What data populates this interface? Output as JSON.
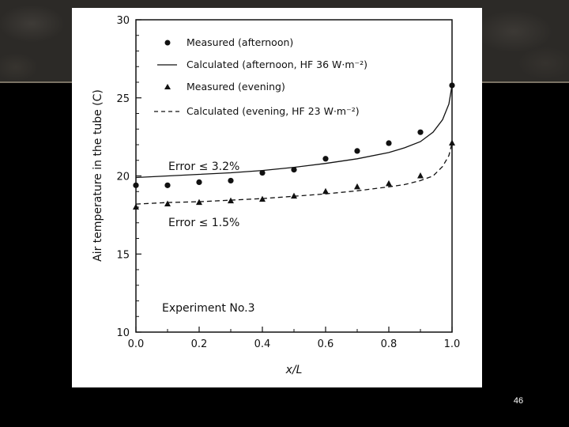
{
  "slide": {
    "page_number": "46"
  },
  "colors": {
    "background": "#000000",
    "header_texture": "#2c2a27",
    "header_rule": "#7a7264",
    "plot_ink": "#111111"
  },
  "chart_data": {
    "type": "line",
    "title": "",
    "xlabel": "x/L",
    "ylabel": "Air temperature in the tube (C)",
    "xlim": [
      0.0,
      1.0
    ],
    "ylim": [
      10,
      30
    ],
    "x_ticks": [
      "0.0",
      "0.2",
      "0.4",
      "0.6",
      "0.8",
      "1.0"
    ],
    "y_ticks": [
      "10",
      "15",
      "20",
      "25",
      "30"
    ],
    "grid": false,
    "legend_position": "top",
    "legend": [
      {
        "label": "Measured (afternoon)",
        "marker": "circle"
      },
      {
        "label": "Calculated (afternoon, HF 36 W·m⁻²)",
        "line": "solid"
      },
      {
        "label": "Measured (evening)",
        "marker": "triangle"
      },
      {
        "label": "Calculated (evening, HF 23 W·m⁻²)",
        "line": "dashed"
      }
    ],
    "annotations": [
      {
        "text": "Error ≤ 3.2%",
        "x": 0.1,
        "y": 20.7
      },
      {
        "text": "Error ≤ 1.5%",
        "x": 0.1,
        "y": 17.0
      },
      {
        "text": "Experiment No.3",
        "x": 0.08,
        "y": 11.5
      }
    ],
    "series": [
      {
        "name": "Measured (afternoon)",
        "kind": "scatter",
        "marker": "circle",
        "x": [
          0.0,
          0.1,
          0.2,
          0.3,
          0.4,
          0.5,
          0.6,
          0.7,
          0.8,
          0.9,
          1.0
        ],
        "y": [
          19.4,
          19.4,
          19.6,
          19.7,
          20.2,
          20.4,
          21.1,
          21.6,
          22.1,
          22.8,
          25.8
        ]
      },
      {
        "name": "Calculated (afternoon, HF 36 W·m⁻²)",
        "kind": "line",
        "style": "solid",
        "x": [
          0.0,
          0.1,
          0.2,
          0.3,
          0.4,
          0.5,
          0.6,
          0.7,
          0.8,
          0.85,
          0.9,
          0.94,
          0.97,
          0.99,
          1.0
        ],
        "y": [
          19.9,
          20.0,
          20.1,
          20.2,
          20.35,
          20.55,
          20.8,
          21.1,
          21.5,
          21.8,
          22.2,
          22.8,
          23.6,
          24.6,
          25.8
        ]
      },
      {
        "name": "Measured (evening)",
        "kind": "scatter",
        "marker": "triangle",
        "x": [
          0.0,
          0.1,
          0.2,
          0.3,
          0.4,
          0.5,
          0.6,
          0.7,
          0.8,
          0.9,
          1.0
        ],
        "y": [
          18.0,
          18.2,
          18.3,
          18.4,
          18.5,
          18.7,
          19.0,
          19.3,
          19.5,
          20.0,
          22.1
        ]
      },
      {
        "name": "Calculated (evening, HF 23 W·m⁻²)",
        "kind": "line",
        "style": "dashed",
        "x": [
          0.0,
          0.1,
          0.2,
          0.3,
          0.4,
          0.5,
          0.6,
          0.7,
          0.8,
          0.85,
          0.9,
          0.94,
          0.97,
          0.99,
          1.0
        ],
        "y": [
          18.2,
          18.3,
          18.35,
          18.45,
          18.55,
          18.7,
          18.85,
          19.05,
          19.3,
          19.45,
          19.7,
          20.0,
          20.6,
          21.3,
          22.1
        ]
      }
    ]
  }
}
